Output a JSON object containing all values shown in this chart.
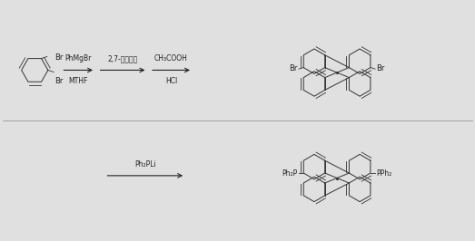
{
  "background_color": "#e0e0e0",
  "fig_width": 5.23,
  "fig_height": 2.66,
  "dpi": 100,
  "row1": {
    "reactant_label_top": "Br",
    "reactant_label_bottom": "Br",
    "arrow1_label_top": "PhMgBr",
    "arrow1_label_bottom": "MTHF",
    "arrow2_label_top": "2,7-二渴赛酰",
    "arrow2_label_bottom": "",
    "arrow3_label_top": "CH₃COOH",
    "arrow3_label_bottom": "HCl",
    "product1_label_left": "Br",
    "product1_label_right": "Br"
  },
  "row2": {
    "arrow_label_top": "Ph₂PLi",
    "product_label_left": "Ph₂P",
    "product_label_right": "PPh₂"
  },
  "line_color": "#333333",
  "text_color": "#222222",
  "fontsize_label": 6.0,
  "fontsize_arrow": 5.5
}
